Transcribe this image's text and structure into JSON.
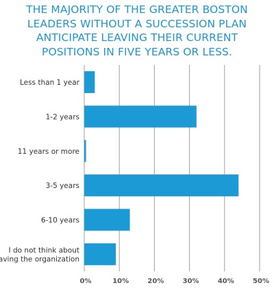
{
  "title": "THE MAJORITY OF THE GREATER BOSTON\nLEADERS WITHOUT A SUCCESSION PLAN\nANTICIPATE LEAVING THEIR CURRENT\nPOSITIONS IN FIVE YEARS OR LESS.",
  "colors": {
    "title": "#1c97cf",
    "bar": "#1c9ad6",
    "grid": "#9e9e9e"
  },
  "chart_data": {
    "type": "bar",
    "orientation": "horizontal",
    "title": "THE MAJORITY OF THE GREATER BOSTON LEADERS WITHOUT A SUCCESSION PLAN ANTICIPATE LEAVING THEIR CURRENT POSITIONS IN FIVE YEARS OR LESS.",
    "categories": [
      [
        "Less than 1 year"
      ],
      [
        "1-2 years"
      ],
      [
        "11 years or more"
      ],
      [
        "3-5 years"
      ],
      [
        "6-10 years"
      ],
      [
        "I do not think about",
        "leaving the organization"
      ]
    ],
    "values": [
      3,
      32,
      0.5,
      44,
      13,
      9
    ],
    "xlim": [
      0,
      50
    ],
    "ticks": [
      "0%",
      "10%",
      "20%",
      "30%",
      "40%",
      "50%"
    ],
    "tick_values": [
      0,
      10,
      20,
      30,
      40,
      50
    ],
    "grid": true,
    "xlabel": "",
    "ylabel": ""
  }
}
